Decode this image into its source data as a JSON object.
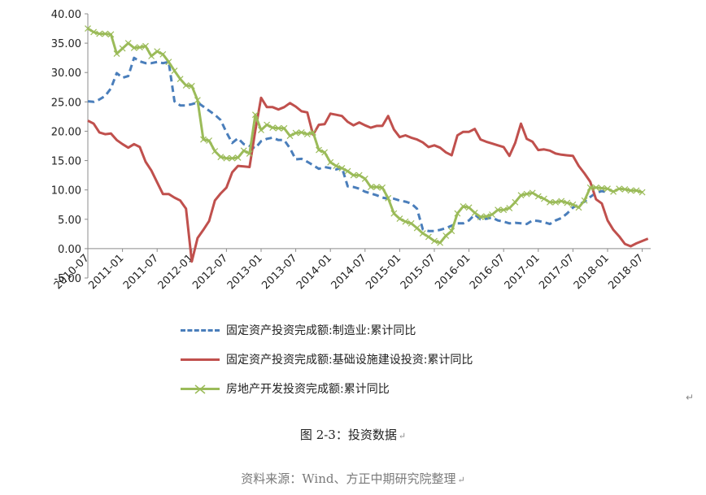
{
  "chart_data": {
    "type": "line",
    "title": "",
    "xlabel": "",
    "ylabel": "",
    "ylim": [
      -5,
      40
    ],
    "y_ticks": [
      "40.00",
      "35.00",
      "30.00",
      "25.00",
      "20.00",
      "15.00",
      "10.00",
      "5.00",
      "0.00",
      "-5.00"
    ],
    "x_start": "2010-07",
    "x_ticks": [
      "2010-07",
      "2011-01",
      "2011-07",
      "2012-01",
      "2012-07",
      "2013-01",
      "2013-07",
      "2014-01",
      "2014-07",
      "2015-01",
      "2015-07",
      "2016-01",
      "2016-07",
      "2017-01",
      "2017-07",
      "2018-01",
      "2018-07"
    ],
    "grid": false,
    "legend_position": "bottom",
    "series": [
      {
        "name": "固定资产投资完成额:制造业:累计同比",
        "color": "#4a7ebb",
        "style": "dashed",
        "values": [
          25.1,
          25.0,
          25.4,
          26.0,
          27.3,
          29.9,
          29.1,
          29.4,
          32.5,
          31.9,
          31.6,
          31.6,
          31.8,
          31.6,
          31.8,
          25.1,
          24.4,
          24.4,
          24.6,
          24.9,
          24.2,
          23.5,
          22.8,
          21.9,
          19.8,
          18.0,
          18.8,
          17.8,
          17.5,
          17.1,
          18.3,
          18.7,
          18.9,
          18.5,
          18.5,
          17.1,
          15.2,
          15.3,
          14.8,
          14.2,
          13.6,
          13.9,
          13.7,
          13.5,
          13.8,
          10.6,
          10.5,
          10.2,
          9.7,
          9.4,
          9.1,
          8.7,
          8.5,
          8.5,
          8.2,
          8.0,
          7.7,
          6.8,
          3.3,
          3.0,
          3.0,
          3.2,
          3.5,
          3.9,
          4.3,
          4.3,
          4.8,
          5.8,
          5.0,
          5.1,
          5.3,
          4.8,
          4.6,
          4.3,
          4.4,
          4.3,
          4.2,
          4.8,
          4.7,
          4.5,
          4.2,
          4.8,
          5.2,
          6.0,
          7.0,
          7.5,
          8.0,
          8.8,
          9.5,
          9.8,
          9.6
        ]
      },
      {
        "name": "固定资产投资完成额:基础设施建设投资:累计同比",
        "color": "#c0504d",
        "style": "solid",
        "values": [
          21.8,
          21.3,
          19.8,
          19.5,
          19.6,
          18.5,
          17.8,
          17.2,
          17.8,
          17.3,
          14.8,
          13.3,
          11.3,
          9.3,
          9.3,
          8.7,
          8.2,
          6.8,
          -2.2,
          1.8,
          3.2,
          4.7,
          8.2,
          9.4,
          10.4,
          13.0,
          14.1,
          14.0,
          13.9,
          20.1,
          25.7,
          24.1,
          24.1,
          23.7,
          24.1,
          24.8,
          24.2,
          23.4,
          23.2,
          19.4,
          21.1,
          21.2,
          23.0,
          22.8,
          22.6,
          21.6,
          21.0,
          21.5,
          21.0,
          20.6,
          20.9,
          20.9,
          22.6,
          20.3,
          19.0,
          19.3,
          18.9,
          18.6,
          18.1,
          17.3,
          17.6,
          17.2,
          16.4,
          15.9,
          19.3,
          19.9,
          19.9,
          20.4,
          18.6,
          18.2,
          17.9,
          17.6,
          17.3,
          15.8,
          18.0,
          21.3,
          18.7,
          18.2,
          16.8,
          16.9,
          16.7,
          16.2,
          16.0,
          15.9,
          15.8,
          14.1,
          12.8,
          11.4,
          8.4,
          7.7,
          4.8,
          3.2,
          2.1,
          0.8,
          0.4,
          0.9,
          1.3,
          1.7
        ]
      },
      {
        "name": "房地产开发投资完成额:累计同比",
        "color": "#9bbb59",
        "style": "solid-x-markers",
        "values": [
          37.5,
          36.9,
          36.6,
          36.6,
          36.5,
          33.2,
          34.1,
          35.0,
          34.2,
          34.3,
          34.5,
          32.8,
          33.6,
          33.1,
          31.8,
          30.3,
          28.9,
          27.8,
          27.7,
          25.3,
          18.6,
          18.4,
          16.6,
          15.6,
          15.4,
          15.4,
          15.5,
          16.7,
          16.2,
          22.8,
          20.2,
          21.1,
          20.6,
          20.5,
          20.5,
          19.2,
          19.7,
          19.8,
          19.5,
          19.8,
          16.8,
          16.4,
          14.7,
          14.1,
          13.7,
          13.2,
          12.5,
          12.5,
          11.9,
          10.5,
          10.5,
          10.4,
          8.6,
          6.0,
          5.1,
          4.6,
          4.3,
          3.5,
          2.6,
          2.0,
          1.3,
          1.0,
          2.2,
          3.0,
          6.0,
          7.2,
          7.0,
          6.1,
          5.4,
          5.5,
          5.8,
          6.6,
          6.6,
          6.9,
          7.9,
          9.1,
          9.3,
          9.5,
          8.9,
          8.5,
          7.9,
          7.9,
          8.1,
          7.8,
          7.5,
          7.0,
          8.2,
          10.4,
          10.4,
          10.3,
          10.2,
          9.7,
          10.2,
          10.1,
          9.9,
          9.9,
          9.6
        ]
      }
    ]
  },
  "caption": "图 2-3：投资数据",
  "source": "资料来源：Wind、方正中期研究院整理",
  "para_mark": "↵"
}
